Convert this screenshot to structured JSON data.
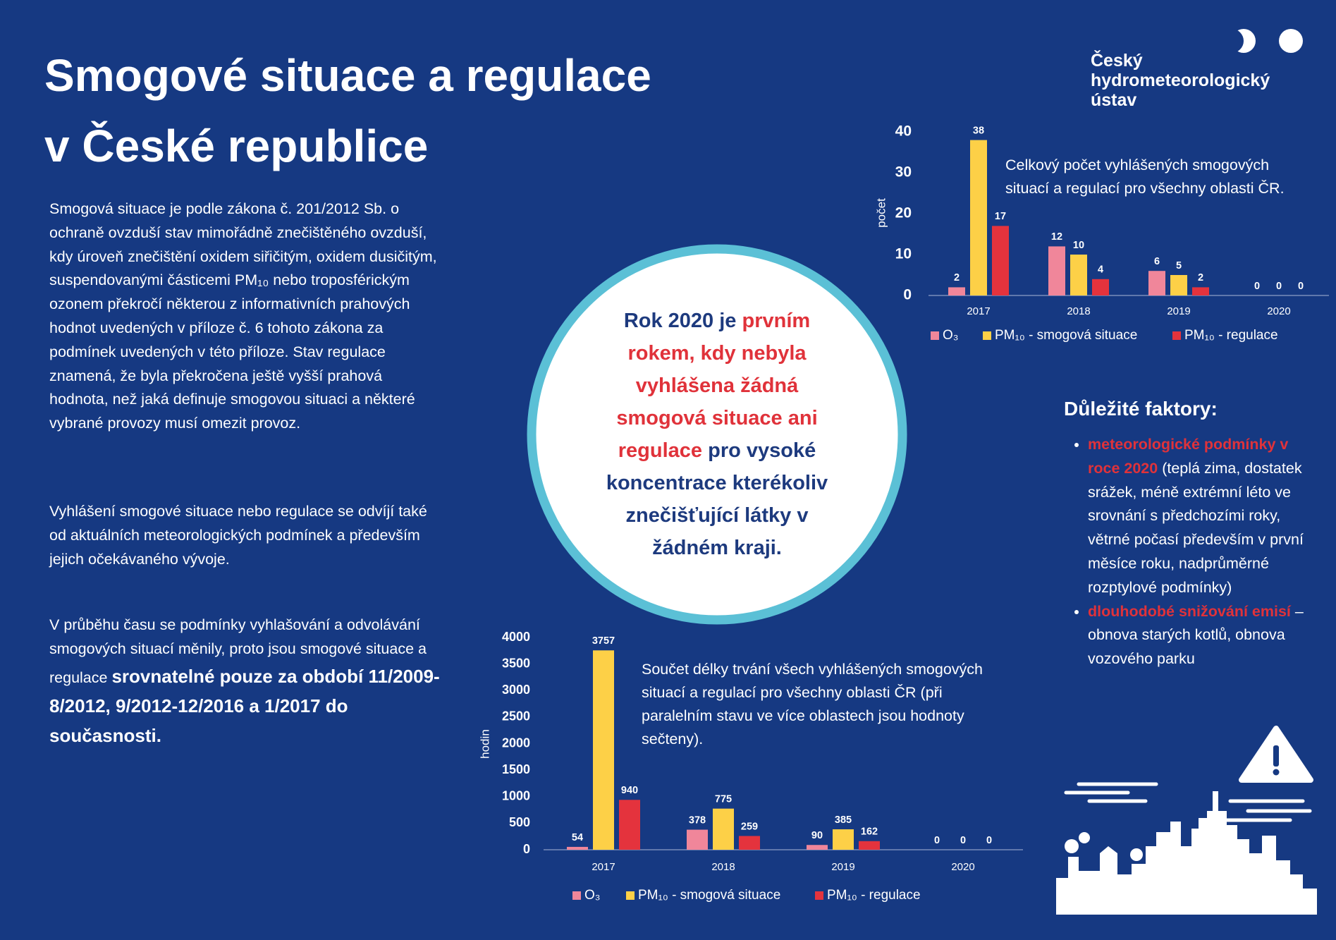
{
  "title": [
    "Smogové situace a regulace",
    "v České republice"
  ],
  "logo": [
    "Český",
    "hydrometeorologický",
    "ústav"
  ],
  "paragraphs": [
    [
      {
        "text": "Smogová situace je podle zákona č. 201/2012 Sb. o ochraně ovzduší stav mimořádně znečištěného ovzduší, kdy úroveň znečištění oxidem siřičitým, oxidem dusičitým, suspendovanými částicemi PM₁₀ nebo troposférickým ozonem překročí některou z informativních prahových hodnot uvedených v příloze č. 6 tohoto zákona za podmínek uvedených v této příloze. Stav regulace znamená, že byla překročena ještě vyšší prahová hodnota, než jaká definuje smogovou situaci a některé vybrané provozy musí omezit provoz.",
        "style": "normal"
      }
    ],
    [
      {
        "text": "Vyhlášení smogové situace nebo regulace se odvíjí také od aktuálních meteorologických podmínek a především jejich očekávaného vývoje.",
        "style": "normal"
      }
    ],
    [
      {
        "text": "V průběhu času se podmínky vyhlašování a odvolávání smogových situací měnily, proto jsou smogové situace a regulace ",
        "style": "normal"
      },
      {
        "text": "srovnatelné pouze za období 11/2009-8/2012, 9/2012-12/2016 a 1/2017 do současnosti.",
        "style": "bold"
      }
    ]
  ],
  "highlight": [
    {
      "text": "Rok 2020 je ",
      "style": "navy"
    },
    {
      "text": "prvním rokem, kdy nebyla vyhlášena žádná smogová situace ani regulace",
      "style": "red"
    },
    {
      "text": " pro vysoké koncentrace kterékoliv znečišťující látky v žádném kraji.",
      "style": "navy"
    }
  ],
  "factors": {
    "heading": "Důležité faktory:",
    "items": [
      [
        {
          "text": "meteorologické podmínky v roce 2020",
          "style": "red"
        },
        {
          "text": " (teplá zima, dostatek srážek, méně extrémní léto ve srovnání s předchozími roky, větrné počasí především v první měsíce roku, nadprůměrné rozptylové podmínky)",
          "style": "normal"
        }
      ],
      [
        {
          "text": "dlouhodobé snižování emisí",
          "style": "red"
        },
        {
          "text": " – obnova starých kotlů, obnova vozového parku",
          "style": "normal"
        }
      ]
    ]
  },
  "chart_data": [
    {
      "type": "bar",
      "description": "Celkový počet vyhlášených smogových situací a regulací pro všechny oblasti ČR.",
      "y_label": "počet",
      "categories": [
        "2017",
        "2018",
        "2019",
        "2020"
      ],
      "series": [
        {
          "name": "O₃",
          "color": "#f0869a",
          "values": [
            2,
            12,
            6,
            0
          ]
        },
        {
          "name": "PM₁₀  - smogová situace",
          "color": "#fdd047",
          "values": [
            38,
            10,
            5,
            0
          ]
        },
        {
          "name": "PM₁₀  - regulace",
          "color": "#e4333d",
          "values": [
            17,
            4,
            2,
            0
          ]
        }
      ],
      "ylim": [
        0,
        40
      ],
      "yticks": [
        0,
        10,
        20,
        30,
        40
      ]
    },
    {
      "type": "bar",
      "description": "Součet délky trvání všech vyhlášených smogových situací a regulací pro všechny oblasti ČR (při paralelním stavu ve více oblastech jsou hodnoty sečteny).",
      "y_label": "hodin",
      "categories": [
        "2017",
        "2018",
        "2019",
        "2020"
      ],
      "series": [
        {
          "name": "O₃",
          "color": "#f0869a",
          "values": [
            54,
            378,
            90,
            0
          ]
        },
        {
          "name": "PM₁₀  - smogová situace",
          "color": "#fdd047",
          "values": [
            3757,
            775,
            385,
            0
          ]
        },
        {
          "name": "PM₁₀  - regulace",
          "color": "#e4333d",
          "values": [
            940,
            259,
            162,
            0
          ]
        }
      ],
      "ylim": [
        0,
        4000
      ],
      "yticks": [
        0,
        500,
        1000,
        1500,
        2000,
        2500,
        3000,
        3500,
        4000
      ]
    }
  ]
}
